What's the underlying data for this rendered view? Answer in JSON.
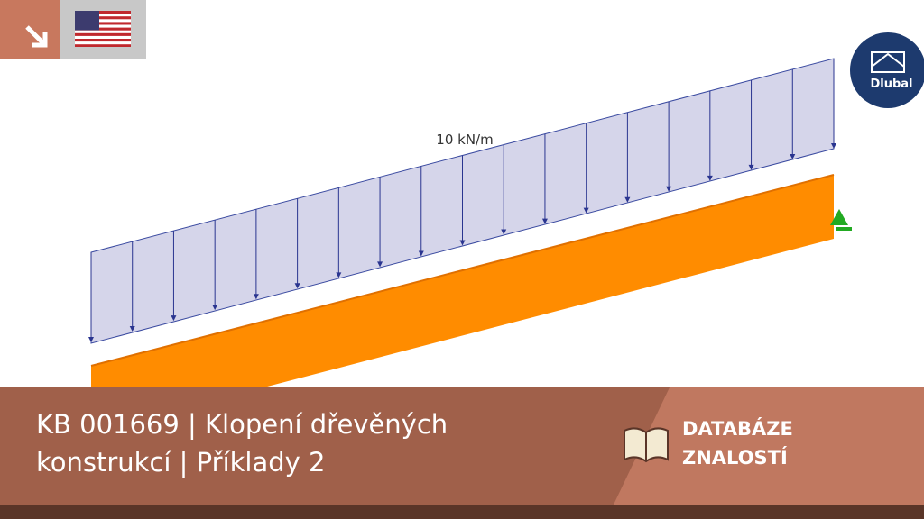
{
  "load_label": "10 kN/m",
  "logo": "Dlubal",
  "banner": {
    "title": "KB 001669 | Klopení dřevěných konstrukcí | Příklady 2",
    "badge": "DATABÁZE ZNALOSTÍ"
  }
}
